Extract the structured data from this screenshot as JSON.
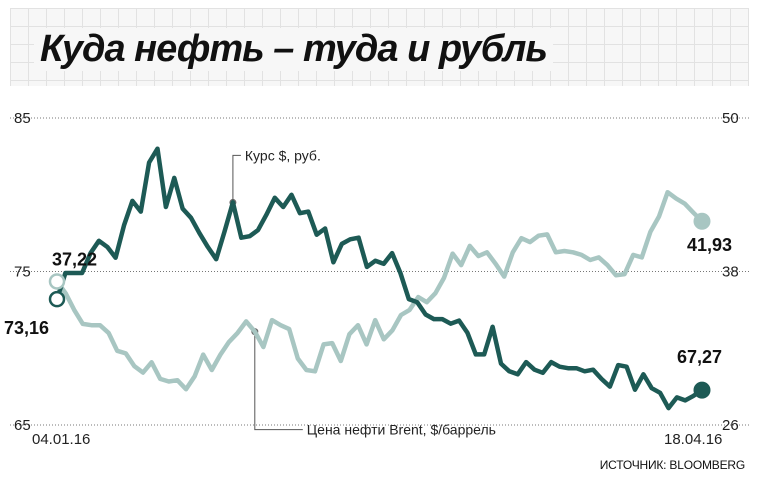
{
  "title": "Куда нефть – туда и рубль",
  "source": "ИСТОЧНИК: BLOOMBERG",
  "colors": {
    "rub": "#1d5a55",
    "brent": "#a8c6c2",
    "background": "#ffffff",
    "grid": "#e2e2e2"
  },
  "chart_data": {
    "type": "line",
    "grid": false,
    "x_start_label": "04.01.16",
    "x_end_label": "18.04.16",
    "left_axis": {
      "ticks": [
        85,
        75,
        65
      ],
      "ylim": [
        65,
        85
      ]
    },
    "right_axis": {
      "ticks": [
        50,
        38,
        26
      ],
      "ylim": [
        26,
        50
      ]
    },
    "series": [
      {
        "name": "Курс $, руб.",
        "axis": "left",
        "start_label": "73,16",
        "end_label": "67,27",
        "values": [
          73.2,
          74.9,
          74.9,
          74.9,
          76.2,
          77.0,
          76.6,
          75.9,
          78.0,
          79.6,
          78.9,
          82.1,
          83.0,
          79.2,
          81.1,
          79.1,
          78.5,
          77.5,
          76.6,
          75.8,
          77.6,
          79.5,
          77.2,
          77.3,
          77.7,
          78.7,
          79.8,
          79.2,
          80.0,
          78.8,
          78.9,
          77.4,
          77.8,
          75.6,
          76.8,
          77.1,
          77.2,
          75.3,
          75.7,
          75.5,
          76.2,
          74.9,
          73.2,
          73.0,
          72.2,
          71.9,
          71.9,
          71.6,
          71.8,
          71.0,
          69.6,
          69.6,
          71.4,
          69.0,
          68.5,
          68.3,
          69.1,
          68.6,
          68.4,
          69.1,
          68.8,
          68.7,
          68.7,
          68.5,
          68.6,
          68.0,
          67.5,
          68.9,
          68.8,
          67.3,
          68.3,
          67.4,
          67.1,
          66.1,
          66.8,
          66.6,
          66.9,
          67.27
        ],
        "markers": [
          {
            "index": 21,
            "value": 79.5
          }
        ]
      },
      {
        "name": "Цена нефти Brent, $/баррель",
        "axis": "right",
        "start_label": "37,22",
        "end_label": "41,93",
        "values": [
          37.22,
          36.3,
          35.0,
          33.9,
          33.8,
          33.8,
          33.2,
          31.8,
          31.6,
          30.6,
          30.1,
          30.9,
          29.6,
          29.4,
          29.5,
          28.8,
          29.8,
          31.5,
          30.3,
          31.5,
          32.5,
          33.2,
          34.1,
          33.3,
          32.1,
          34.2,
          33.8,
          33.5,
          31.2,
          30.3,
          30.2,
          32.3,
          32.4,
          31.0,
          33.1,
          33.8,
          32.3,
          34.2,
          32.7,
          33.4,
          34.6,
          35.0,
          36.0,
          35.6,
          36.3,
          37.5,
          39.4,
          38.5,
          40.0,
          39.2,
          39.5,
          38.6,
          37.6,
          39.5,
          40.6,
          40.3,
          40.8,
          40.9,
          39.5,
          39.6,
          39.5,
          39.3,
          38.9,
          39.1,
          38.5,
          37.7,
          37.8,
          39.3,
          39.1,
          41.1,
          42.3,
          44.2,
          43.7,
          43.3,
          42.6,
          41.93
        ],
        "markers": [
          {
            "index": 23,
            "value": 33.3
          }
        ]
      }
    ],
    "annotations": [
      {
        "text": "Курс $, руб.",
        "series": "Курс $, руб."
      },
      {
        "text": "Цена нефти Brent, $/баррель",
        "series": "Цена нефти Brent, $/баррель"
      }
    ]
  }
}
